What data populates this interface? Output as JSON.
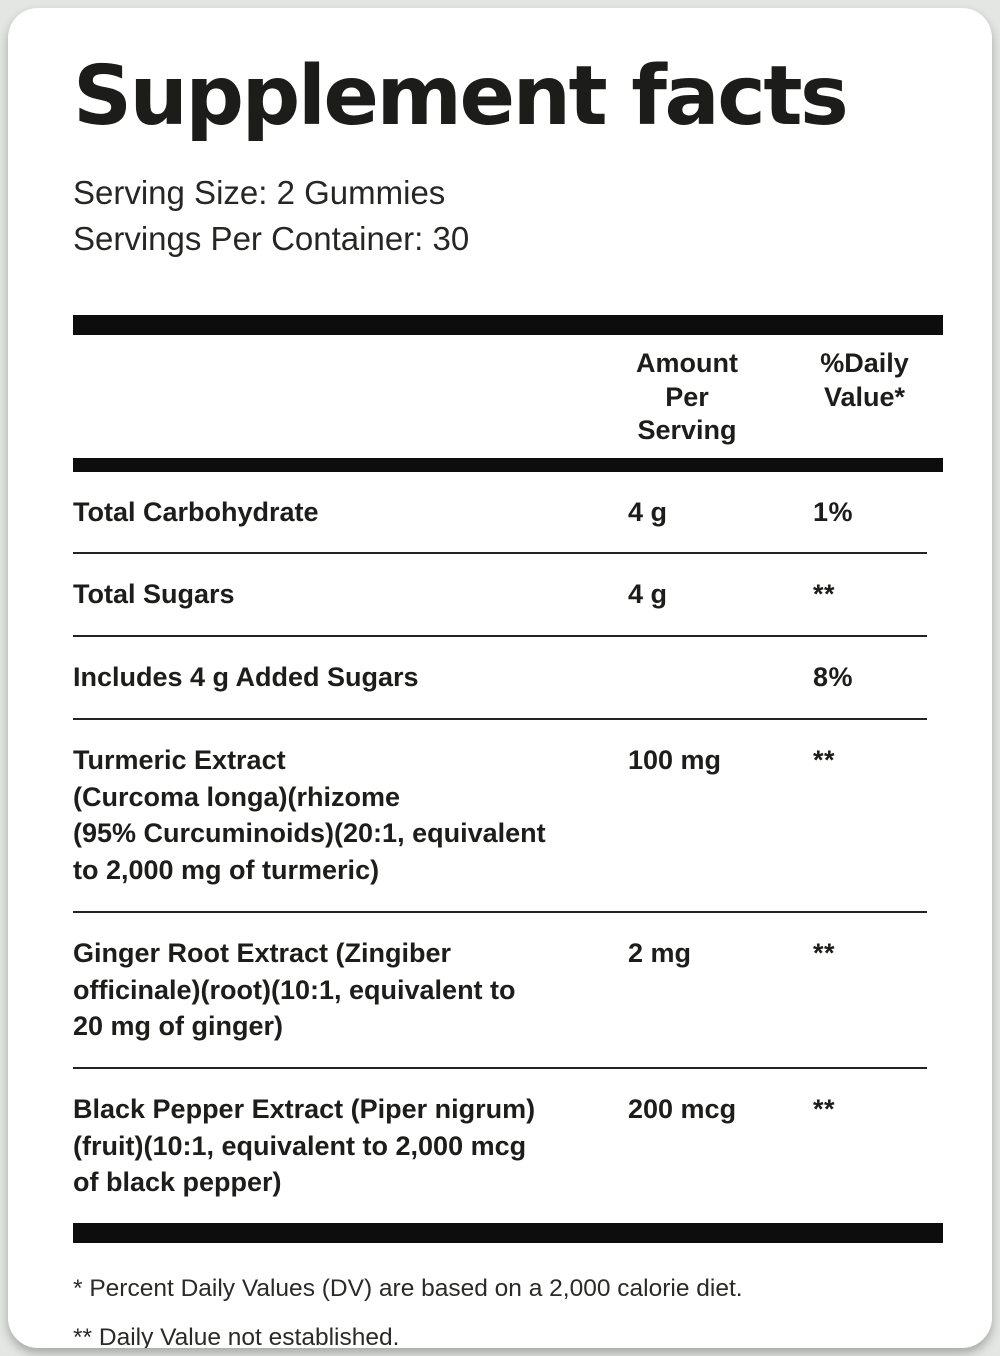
{
  "title": "Supplement facts",
  "serving": {
    "size": "Serving Size: 2 Gummies",
    "per_container": "Servings Per Container: 30"
  },
  "table": {
    "header_amount": "Amount Per\nServing",
    "header_dv": "%Daily\nValue*",
    "rows": [
      {
        "name": "Total Carbohydrate",
        "amount": "4 g",
        "dv": "1%"
      },
      {
        "name": "Total Sugars",
        "amount": "4 g",
        "dv": "**"
      },
      {
        "name": "Includes 4 g Added Sugars",
        "amount": "",
        "dv": "8%"
      },
      {
        "name": "Turmeric Extract\n(Curcoma longa)(rhizome\n(95% Curcuminoids)(20:1, equivalent\nto 2,000 mg of turmeric)",
        "amount": "100 mg",
        "dv": "**"
      },
      {
        "name": "Ginger Root Extract (Zingiber\nofficinale)(root)(10:1, equivalent to\n20 mg of ginger)",
        "amount": "2 mg",
        "dv": "**"
      },
      {
        "name": "Black Pepper Extract (Piper nigrum)\n(fruit)(10:1, equivalent to 2,000 mcg\nof black pepper)",
        "amount": "200 mcg",
        "dv": "**"
      }
    ]
  },
  "footnotes": [
    "* Percent Daily Values (DV) are based on a 2,000 calorie diet.",
    "** Daily Value not established."
  ],
  "colors": {
    "text": "#1d1d1b",
    "bar": "#0d0d0d",
    "card_bg": "#ffffff",
    "page_bg": "#e4e6e3"
  }
}
